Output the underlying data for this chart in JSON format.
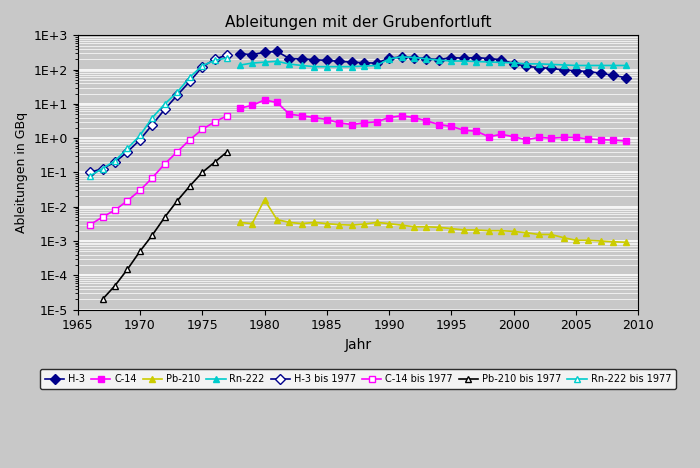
{
  "title": "Ableitungen mit der Grubenfortluft",
  "xlabel": "Jahr",
  "ylabel": "Ableitungen in GBq",
  "xlim": [
    1965,
    2010
  ],
  "bg_color": "#c8c8c8",
  "H3_bis1977": {
    "years": [
      1966,
      1967,
      1968,
      1969,
      1970,
      1971,
      1972,
      1973,
      1974,
      1975,
      1976,
      1977
    ],
    "values": [
      0.1,
      0.13,
      0.2,
      0.4,
      0.9,
      2.5,
      7.0,
      18.0,
      45.0,
      120.0,
      200.0,
      270.0
    ],
    "color": "#00008B",
    "marker": "D",
    "marker_facecolor": "white",
    "linestyle": "-",
    "label": "H-3 bis 1977"
  },
  "C14_bis1977": {
    "years": [
      1966,
      1967,
      1968,
      1969,
      1970,
      1971,
      1972,
      1973,
      1974,
      1975,
      1976,
      1977
    ],
    "values": [
      0.003,
      0.005,
      0.008,
      0.015,
      0.03,
      0.07,
      0.18,
      0.4,
      0.9,
      1.8,
      3.0,
      4.5
    ],
    "color": "#FF00FF",
    "marker": "s",
    "marker_facecolor": "white",
    "linestyle": "-",
    "label": "C-14 bis 1977"
  },
  "Pb210_bis1977": {
    "years": [
      1967,
      1968,
      1969,
      1970,
      1971,
      1972,
      1973,
      1974,
      1975,
      1976,
      1977
    ],
    "values": [
      2e-05,
      5e-05,
      0.00015,
      0.0005,
      0.0015,
      0.005,
      0.015,
      0.04,
      0.1,
      0.2,
      0.4
    ],
    "color": "#000000",
    "marker": "^",
    "marker_facecolor": "white",
    "linestyle": "-",
    "label": "Pb-210 bis 1977"
  },
  "Rn222_bis1977": {
    "years": [
      1966,
      1967,
      1968,
      1969,
      1970,
      1971,
      1972,
      1973,
      1974,
      1975,
      1976,
      1977
    ],
    "values": [
      0.08,
      0.13,
      0.22,
      0.5,
      1.2,
      4.0,
      10.0,
      22.0,
      60.0,
      130.0,
      185.0,
      220.0
    ],
    "color": "#00CCCC",
    "marker": "^",
    "marker_facecolor": "white",
    "linestyle": "-",
    "label": "Rn-222 bis 1977"
  },
  "H3": {
    "years": [
      1978,
      1979,
      1980,
      1981,
      1982,
      1983,
      1984,
      1985,
      1986,
      1987,
      1988,
      1989,
      1990,
      1991,
      1992,
      1993,
      1994,
      1995,
      1996,
      1997,
      1998,
      1999,
      2000,
      2001,
      2002,
      2003,
      2004,
      2005,
      2006,
      2007,
      2008,
      2009
    ],
    "values": [
      290,
      275,
      320,
      340,
      210,
      205,
      195,
      185,
      175,
      165,
      158,
      155,
      215,
      235,
      225,
      210,
      195,
      225,
      215,
      225,
      210,
      195,
      150,
      125,
      115,
      108,
      98,
      93,
      88,
      78,
      68,
      58
    ],
    "color": "#00008B",
    "marker": "D",
    "marker_facecolor": "#00008B",
    "linestyle": "-",
    "label": "H-3"
  },
  "C14": {
    "years": [
      1978,
      1979,
      1980,
      1981,
      1982,
      1983,
      1984,
      1985,
      1986,
      1987,
      1988,
      1989,
      1990,
      1991,
      1992,
      1993,
      1994,
      1995,
      1996,
      1997,
      1998,
      1999,
      2000,
      2001,
      2002,
      2003,
      2004,
      2005,
      2006,
      2007,
      2008,
      2009
    ],
    "values": [
      7.5,
      9.0,
      13.0,
      11.0,
      5.0,
      4.5,
      4.0,
      3.5,
      2.8,
      2.5,
      2.8,
      3.0,
      4.0,
      4.5,
      4.0,
      3.2,
      2.5,
      2.2,
      1.7,
      1.6,
      1.1,
      1.3,
      1.1,
      0.9,
      1.05,
      1.0,
      1.05,
      1.05,
      0.95,
      0.9,
      0.88,
      0.82
    ],
    "color": "#FF00FF",
    "marker": "s",
    "marker_facecolor": "#FF00FF",
    "linestyle": "-",
    "label": "C-14"
  },
  "Pb210": {
    "years": [
      1978,
      1979,
      1980,
      1981,
      1982,
      1983,
      1984,
      1985,
      1986,
      1987,
      1988,
      1989,
      1990,
      1991,
      1992,
      1993,
      1994,
      1995,
      1996,
      1997,
      1998,
      1999,
      2000,
      2001,
      2002,
      2003,
      2004,
      2005,
      2006,
      2007,
      2008,
      2009
    ],
    "values": [
      0.0035,
      0.0032,
      0.016,
      0.0042,
      0.0035,
      0.0032,
      0.0035,
      0.0032,
      0.003,
      0.0029,
      0.0031,
      0.0035,
      0.0032,
      0.0029,
      0.0026,
      0.0026,
      0.0025,
      0.0023,
      0.0021,
      0.0021,
      0.002,
      0.002,
      0.0019,
      0.00175,
      0.00155,
      0.00155,
      0.00125,
      0.00105,
      0.00105,
      0.001,
      0.00095,
      0.00092
    ],
    "color": "#CCCC00",
    "marker": "^",
    "marker_facecolor": "#CCCC00",
    "linestyle": "-",
    "label": "Pb-210"
  },
  "Rn222": {
    "years": [
      1978,
      1979,
      1980,
      1981,
      1982,
      1983,
      1984,
      1985,
      1986,
      1987,
      1988,
      1989,
      1990,
      1991,
      1992,
      1993,
      1994,
      1995,
      1996,
      1997,
      1998,
      1999,
      2000,
      2001,
      2002,
      2003,
      2004,
      2005,
      2006,
      2007,
      2008,
      2009
    ],
    "values": [
      135,
      155,
      165,
      175,
      145,
      132,
      122,
      122,
      122,
      122,
      127,
      132,
      205,
      235,
      225,
      205,
      188,
      178,
      178,
      172,
      167,
      162,
      157,
      147,
      147,
      142,
      137,
      132,
      132,
      132,
      132,
      132
    ],
    "color": "#00CCCC",
    "marker": "^",
    "marker_facecolor": "#00CCCC",
    "linestyle": "-",
    "label": "Rn-222"
  }
}
